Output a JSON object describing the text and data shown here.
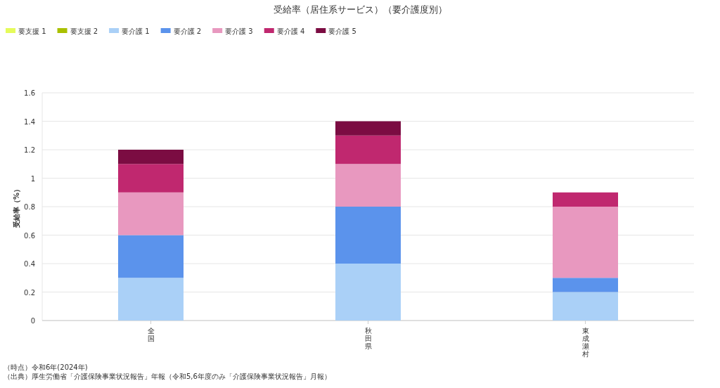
{
  "chart_data": {
    "type": "bar",
    "stacked": true,
    "title": "受給率（居住系サービス）（要介護度別）",
    "ylabel": "受給率（%）",
    "categories": [
      "全国",
      "秋田県",
      "東成瀬村"
    ],
    "series": [
      {
        "name": "要支援 1",
        "color": "#e5fb5b",
        "values": [
          0,
          0,
          0
        ]
      },
      {
        "name": "要支援 2",
        "color": "#a9c000",
        "values": [
          0,
          0,
          0
        ]
      },
      {
        "name": "要介護 1",
        "color": "#aad0f7",
        "values": [
          0.3,
          0.4,
          0.2
        ]
      },
      {
        "name": "要介護 2",
        "color": "#5b93ec",
        "values": [
          0.3,
          0.4,
          0.1
        ]
      },
      {
        "name": "要介護 3",
        "color": "#e898bf",
        "values": [
          0.3,
          0.3,
          0.5
        ]
      },
      {
        "name": "要介護 4",
        "color": "#c0286f",
        "values": [
          0.2,
          0.2,
          0.1
        ]
      },
      {
        "name": "要介護 5",
        "color": "#7b0c42",
        "values": [
          0.1,
          0.1,
          0
        ]
      }
    ],
    "ylim": [
      0,
      1.6
    ],
    "yticks": [
      0,
      0.2,
      0.4,
      0.6,
      0.8,
      1,
      1.2,
      1.4,
      1.6
    ],
    "grid": "y",
    "legend": "top left",
    "annotations": [
      "（時点）令和6年(2024年)",
      "（出典）厚生労働省「介護保険事業状況報告」年報（令和5,6年度のみ「介護保険事業状況報告」月報）"
    ]
  }
}
